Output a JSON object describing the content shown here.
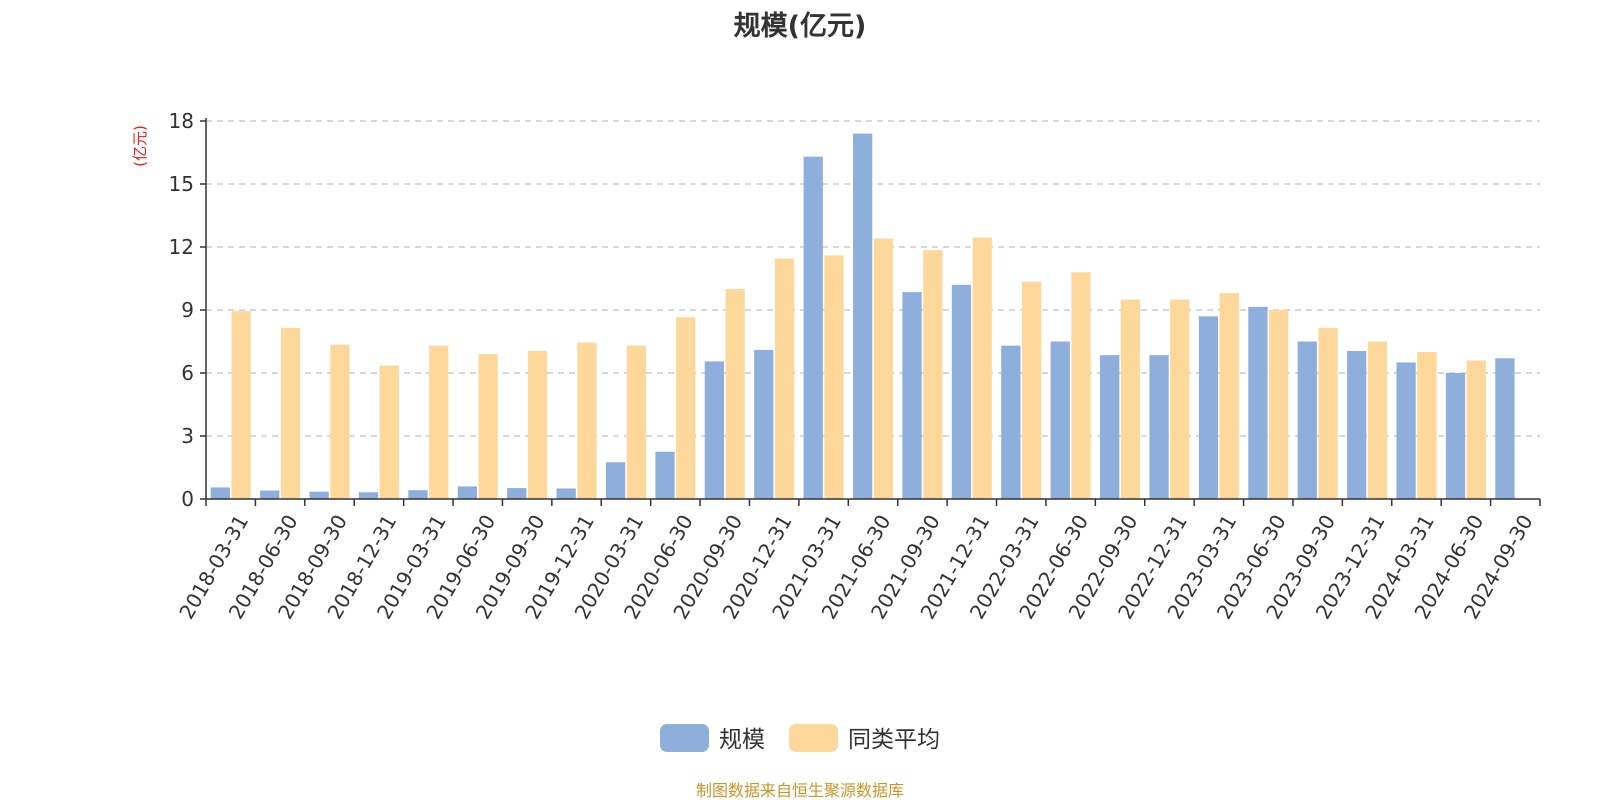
{
  "chart_data": {
    "type": "bar",
    "title": "规模(亿元)",
    "ylabel": "(亿元)",
    "ylim": [
      0,
      18
    ],
    "yticks": [
      0,
      3,
      6,
      9,
      12,
      15,
      18
    ],
    "grid": true,
    "legend_position": "bottom",
    "categories": [
      "2018-03-31",
      "2018-06-30",
      "2018-09-30",
      "2018-12-31",
      "2019-03-31",
      "2019-06-30",
      "2019-09-30",
      "2019-12-31",
      "2020-03-31",
      "2020-06-30",
      "2020-09-30",
      "2020-12-31",
      "2021-03-31",
      "2021-06-30",
      "2021-09-30",
      "2021-12-31",
      "2022-03-31",
      "2022-06-30",
      "2022-09-30",
      "2022-12-31",
      "2023-03-31",
      "2023-06-30",
      "2023-09-30",
      "2023-12-31",
      "2024-03-31",
      "2024-06-30",
      "2024-09-30"
    ],
    "series": [
      {
        "name": "规模",
        "color": "#8eaedb",
        "values": [
          0.55,
          0.4,
          0.35,
          0.32,
          0.42,
          0.6,
          0.52,
          0.5,
          1.75,
          2.25,
          6.55,
          7.1,
          16.3,
          17.4,
          9.85,
          10.2,
          7.3,
          7.5,
          6.85,
          6.85,
          8.7,
          9.15,
          7.5,
          7.05,
          6.5,
          6.0,
          6.7
        ]
      },
      {
        "name": "同类平均",
        "color": "#fdd89a",
        "values": [
          8.95,
          8.15,
          7.35,
          6.35,
          7.3,
          6.9,
          7.05,
          7.45,
          7.3,
          8.65,
          10.0,
          11.45,
          11.6,
          12.4,
          11.85,
          12.45,
          10.35,
          10.8,
          9.5,
          9.5,
          9.8,
          9.0,
          8.15,
          7.5,
          7.0,
          6.6,
          null
        ]
      }
    ]
  },
  "colors": {
    "unit_label": "#e0201b",
    "source_text": "#c9952a",
    "axis": "#333333",
    "grid": "#cccccc"
  },
  "footer": {
    "source": "制图数据来自恒生聚源数据库"
  }
}
